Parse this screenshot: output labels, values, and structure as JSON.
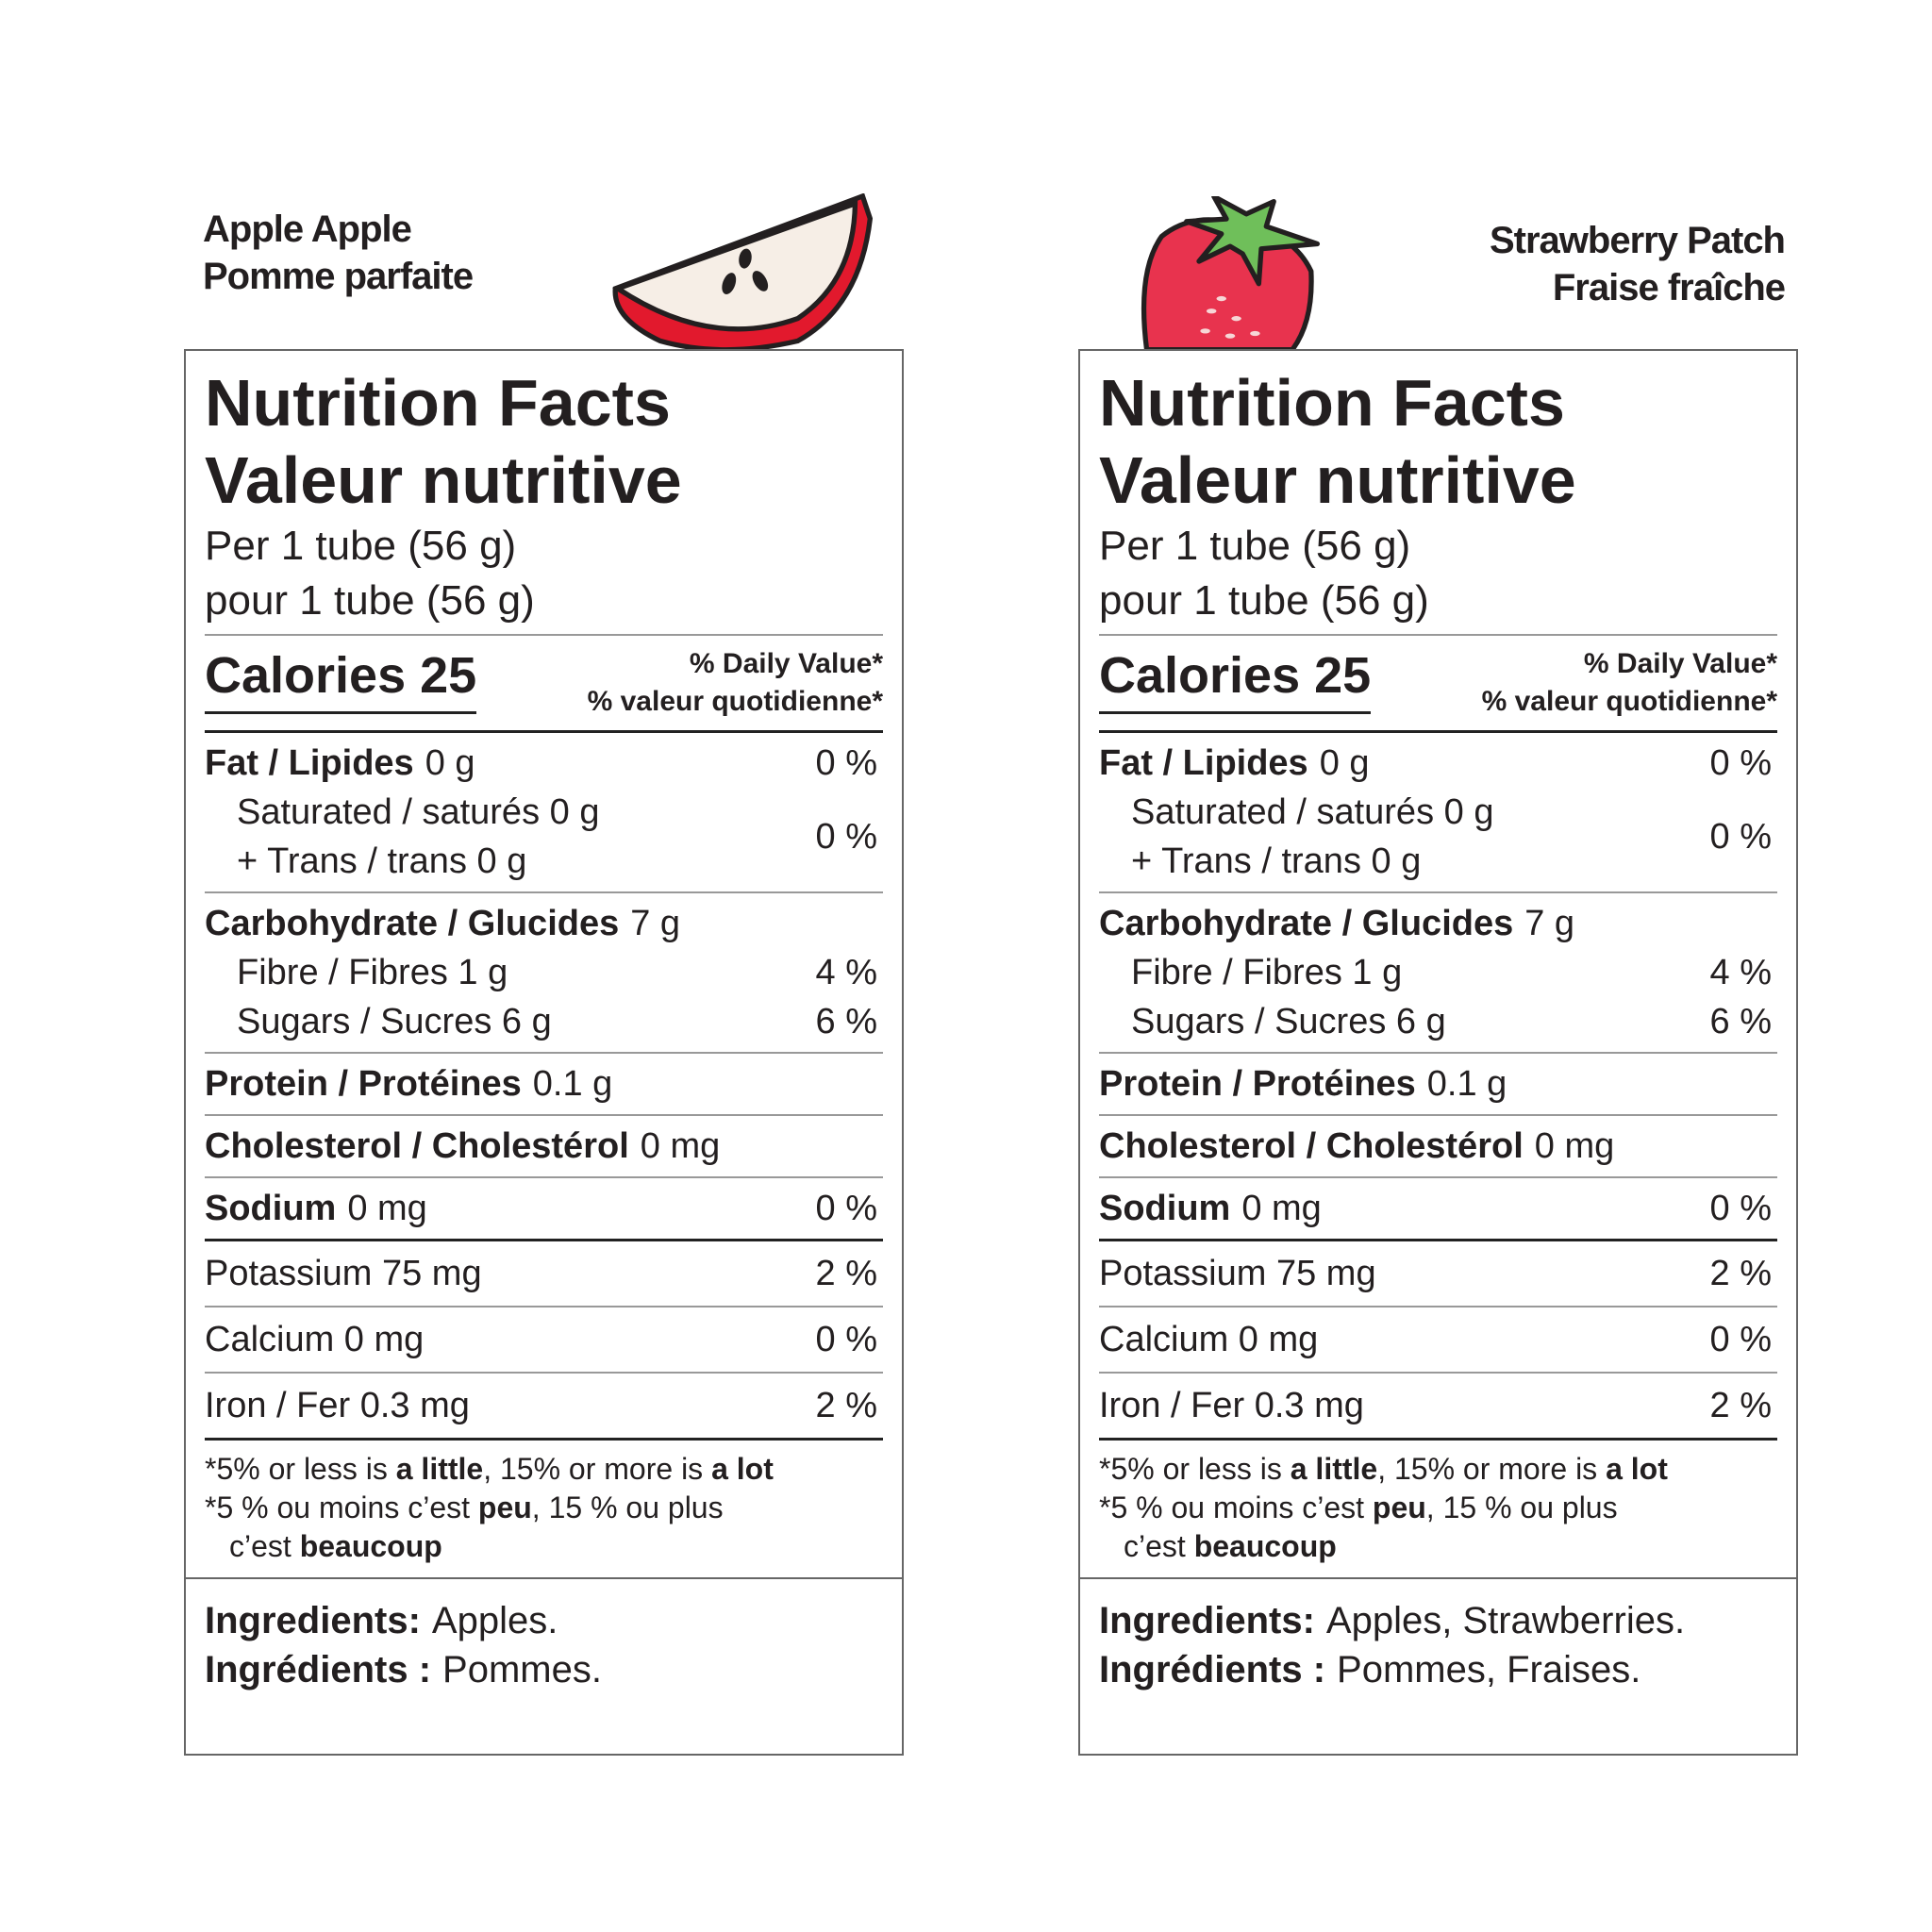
{
  "labels": [
    {
      "brand": [
        "Apple Apple",
        "Pomme parfaite"
      ],
      "title": [
        "Nutrition Facts",
        "Valeur nutritive"
      ],
      "serving": [
        "Per 1 tube (56 g)",
        "pour 1 tube (56 g)"
      ],
      "calories": "Calories 25",
      "daily_value": [
        "% Daily Value*",
        "% valeur quotidienne*"
      ],
      "nutrients": [
        [
          {
            "name": "Fat / Lipides",
            "amount": "0 g",
            "dv": "0 %"
          },
          {
            "sub": [
              "Saturated / saturés 0 g",
              "+ Trans / trans 0 g"
            ],
            "dv": "0 %"
          }
        ],
        [
          {
            "name": "Carbohydrate / Glucides",
            "amount": "7 g"
          },
          {
            "sub": [
              "Fibre / Fibres 1 g"
            ],
            "dv": "4 %"
          },
          {
            "sub": [
              "Sugars / Sucres 6 g"
            ],
            "dv": "6 %"
          }
        ],
        [
          {
            "name": "Protein / Protéines",
            "amount": "0.1 g"
          }
        ],
        [
          {
            "name": "Cholesterol / Cholestérol",
            "amount": "0 mg"
          }
        ],
        [
          {
            "name": "Sodium",
            "amount": "0 mg",
            "dv": "0 %"
          }
        ]
      ],
      "minerals": [
        {
          "amount": "Potassium 75 mg",
          "dv": "2 %"
        },
        {
          "amount": "Calcium 0 mg",
          "dv": "0 %"
        },
        {
          "amount": "Iron / Fer 0.3 mg",
          "dv": "2 %"
        }
      ],
      "footnote": [
        [
          {
            "t": "*5% or less is "
          },
          {
            "b": "a little"
          },
          {
            "t": ", 15% or more is "
          },
          {
            "b": "a lot"
          }
        ],
        [
          {
            "t": "*5 % ou moins c’est "
          },
          {
            "b": "peu"
          },
          {
            "t": ", 15 % ou plus"
          }
        ],
        [
          {
            "t": "c’est "
          },
          {
            "b": "beaucoup"
          }
        ]
      ],
      "ingredients": [
        {
          "b": "Ingredients:",
          "t": "Apples."
        },
        {
          "b": "Ingrédients :",
          "t": "Pommes."
        }
      ]
    },
    {
      "brand": [
        "Strawberry Patch",
        "Fraise fraîche"
      ],
      "title": [
        "Nutrition Facts",
        "Valeur nutritive"
      ],
      "serving": [
        "Per 1 tube (56 g)",
        "pour 1 tube (56 g)"
      ],
      "calories": "Calories 25",
      "daily_value": [
        "% Daily Value*",
        "% valeur quotidienne*"
      ],
      "nutrients": [
        [
          {
            "name": "Fat / Lipides",
            "amount": "0 g",
            "dv": "0 %"
          },
          {
            "sub": [
              "Saturated / saturés 0 g",
              "+ Trans / trans 0 g"
            ],
            "dv": "0 %"
          }
        ],
        [
          {
            "name": "Carbohydrate / Glucides",
            "amount": "7 g"
          },
          {
            "sub": [
              "Fibre / Fibres 1 g"
            ],
            "dv": "4 %"
          },
          {
            "sub": [
              "Sugars / Sucres 6 g"
            ],
            "dv": "6 %"
          }
        ],
        [
          {
            "name": "Protein / Protéines",
            "amount": "0.1 g"
          }
        ],
        [
          {
            "name": "Cholesterol / Cholestérol",
            "amount": "0 mg"
          }
        ],
        [
          {
            "name": "Sodium",
            "amount": "0 mg",
            "dv": "0 %"
          }
        ]
      ],
      "minerals": [
        {
          "amount": "Potassium 75 mg",
          "dv": "2 %"
        },
        {
          "amount": "Calcium 0 mg",
          "dv": "0 %"
        },
        {
          "amount": "Iron / Fer 0.3 mg",
          "dv": "2 %"
        }
      ],
      "footnote": [
        [
          {
            "t": "*5% or less is "
          },
          {
            "b": "a little"
          },
          {
            "t": ", 15% or more is "
          },
          {
            "b": "a lot"
          }
        ],
        [
          {
            "t": "*5 % ou moins c’est "
          },
          {
            "b": "peu"
          },
          {
            "t": ", 15 % ou plus"
          }
        ],
        [
          {
            "t": "c’est "
          },
          {
            "b": "beaucoup"
          }
        ]
      ],
      "ingredients": [
        {
          "b": "Ingredients:",
          "t": "Apples, Strawberries."
        },
        {
          "b": "Ingrédients :",
          "t": "Pommes, Fraises."
        }
      ]
    }
  ]
}
